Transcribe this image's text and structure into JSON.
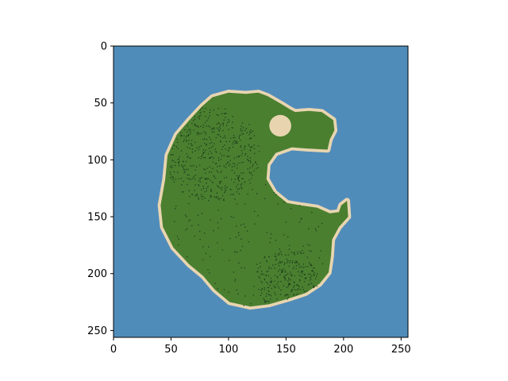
{
  "chart_data": {
    "type": "heatmap",
    "title": "",
    "xlabel": "",
    "ylabel": "",
    "grid": false,
    "x_range": [
      0,
      256
    ],
    "y_range": [
      256,
      0
    ],
    "x_ticks": [
      {
        "value": 0,
        "label": "0"
      },
      {
        "value": 50,
        "label": "50"
      },
      {
        "value": 100,
        "label": "100"
      },
      {
        "value": 150,
        "label": "150"
      },
      {
        "value": 200,
        "label": "200"
      },
      {
        "value": 250,
        "label": "250"
      }
    ],
    "y_ticks": [
      {
        "value": 0,
        "label": "0"
      },
      {
        "value": 50,
        "label": "50"
      },
      {
        "value": 100,
        "label": "100"
      },
      {
        "value": 150,
        "label": "150"
      },
      {
        "value": 200,
        "label": "200"
      },
      {
        "value": 250,
        "label": "250"
      }
    ],
    "colors": {
      "water": "#508cba",
      "sand": "#e8d5b0",
      "grass": "#4a7f30",
      "trees": "#1f3d1a",
      "axis": "#000000"
    },
    "terrain": {
      "island_outline": [
        [
          86,
          45
        ],
        [
          100,
          41
        ],
        [
          115,
          42
        ],
        [
          126,
          41
        ],
        [
          134,
          44
        ],
        [
          146,
          51
        ],
        [
          154,
          56
        ],
        [
          158,
          58
        ],
        [
          170,
          57
        ],
        [
          181,
          58
        ],
        [
          191,
          65
        ],
        [
          192,
          74
        ],
        [
          188,
          82
        ],
        [
          186,
          91
        ],
        [
          167,
          90
        ],
        [
          155,
          89
        ],
        [
          141,
          94
        ],
        [
          134,
          104
        ],
        [
          133,
          117
        ],
        [
          140,
          129
        ],
        [
          151,
          138
        ],
        [
          163,
          140
        ],
        [
          177,
          142
        ],
        [
          188,
          147
        ],
        [
          196,
          146
        ],
        [
          198,
          140
        ],
        [
          203,
          136
        ],
        [
          204,
          150
        ],
        [
          196,
          159
        ],
        [
          190,
          170
        ],
        [
          189,
          185
        ],
        [
          187,
          199
        ],
        [
          179,
          209
        ],
        [
          167,
          217
        ],
        [
          152,
          222
        ],
        [
          135,
          227
        ],
        [
          119,
          229
        ],
        [
          101,
          225
        ],
        [
          88,
          214
        ],
        [
          78,
          202
        ],
        [
          66,
          192
        ],
        [
          52,
          177
        ],
        [
          43,
          159
        ],
        [
          41,
          140
        ],
        [
          45,
          117
        ],
        [
          47,
          96
        ],
        [
          55,
          78
        ],
        [
          66,
          65
        ],
        [
          77,
          53
        ]
      ],
      "lake": {
        "center": [
          145,
          70
        ],
        "radius_x": 9.5,
        "radius_y": 9.5
      },
      "beach_width": 2.6
    }
  }
}
